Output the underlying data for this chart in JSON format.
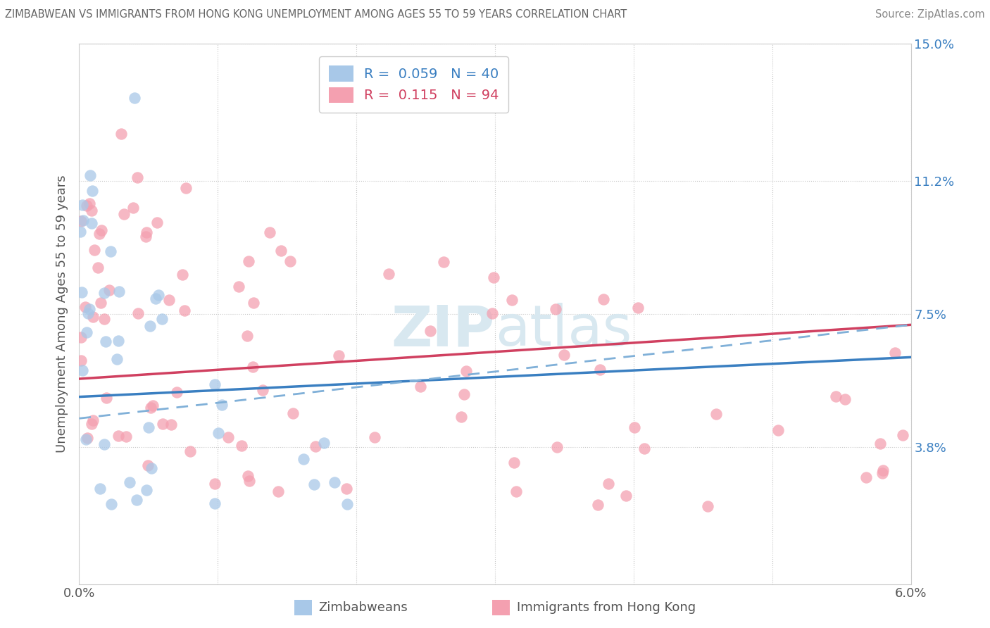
{
  "title": "ZIMBABWEAN VS IMMIGRANTS FROM HONG KONG UNEMPLOYMENT AMONG AGES 55 TO 59 YEARS CORRELATION CHART",
  "source": "Source: ZipAtlas.com",
  "ylabel": "Unemployment Among Ages 55 to 59 years",
  "xmin": 0.0,
  "xmax": 0.06,
  "ymin": 0.0,
  "ymax": 0.15,
  "zim_color": "#a8c8e8",
  "hk_color": "#f4a0b0",
  "zim_line_color": "#3a7fc1",
  "hk_line_color": "#d04060",
  "hk_dash_color": "#80b0d8",
  "watermark_color": "#d8e8f0",
  "zim_seed": 42,
  "hk_seed": 99,
  "legend_zim_label": "R =  0.059   N = 40",
  "legend_hk_label": "R =  0.115   N = 94"
}
